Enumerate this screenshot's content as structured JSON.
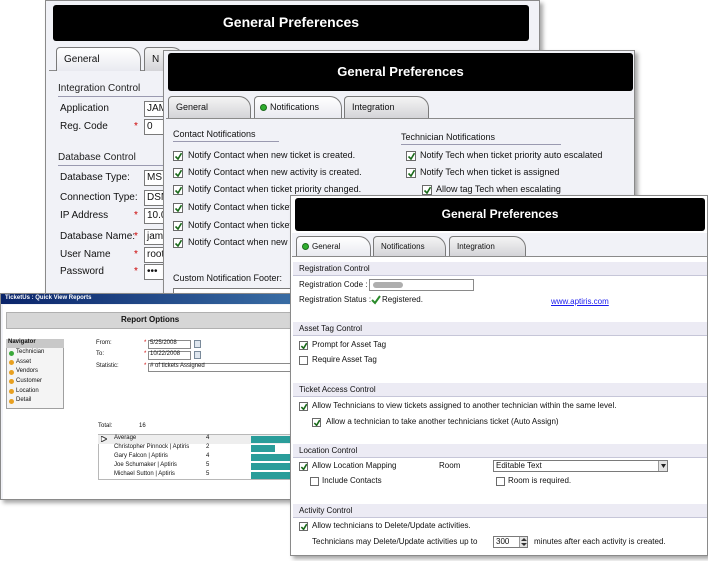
{
  "back_window": {
    "title": "General Preferences",
    "tabs": [
      "General",
      "N"
    ],
    "integration_control": {
      "heading": "Integration Control",
      "fields": [
        {
          "label": "Application",
          "value": "JAM"
        },
        {
          "label": "Reg. Code",
          "mark": "*",
          "value": "0"
        }
      ]
    },
    "database_control": {
      "heading": "Database Control",
      "fields": [
        {
          "label": "Database Type:",
          "value": "MS"
        },
        {
          "label": "Connection Type:",
          "value": "DSN"
        },
        {
          "label": "IP Address",
          "mark": "*",
          "value": "10.0"
        },
        {
          "label": "Database Name:",
          "mark": "*",
          "value": "jamf"
        },
        {
          "label": "User Name",
          "mark": "*",
          "value": "root"
        },
        {
          "label": "Password",
          "mark": "*",
          "value": "•••"
        }
      ]
    }
  },
  "middle_window": {
    "title": "General Preferences",
    "tabs": [
      "General",
      "Notifications",
      "Integration"
    ],
    "contact_notifications": {
      "heading": "Contact Notifications",
      "items": [
        {
          "label": "Notify Contact when new ticket is created.",
          "checked": true
        },
        {
          "label": "Notify Contact when new activity is created.",
          "checked": true
        },
        {
          "label": "Notify Contact when ticket priority changed.",
          "checked": true
        },
        {
          "label": "Notify Contact when ticket",
          "checked": true
        },
        {
          "label": "Notify Contact when ticket",
          "checked": true
        },
        {
          "label": "Notify Contact when new ticket",
          "checked": true
        }
      ]
    },
    "technician_notifications": {
      "heading": "Technician Notifications",
      "items": [
        {
          "label": "Notify Tech when ticket priority auto escalated",
          "checked": true
        },
        {
          "label": "Notify Tech when  ticket is assigned",
          "checked": true
        },
        {
          "label": "Allow tag Tech when escalating",
          "checked": true
        }
      ]
    },
    "footer_label": "Custom Notification Footer:"
  },
  "report_window": {
    "title": "TicketUs : Quick View Reports",
    "heading": "Report Options",
    "navigator": {
      "heading": "Navigator",
      "items": [
        {
          "label": "Technician",
          "color": "#3aa83a"
        },
        {
          "label": "Asset",
          "color": "#e8a020"
        },
        {
          "label": "Vendors",
          "color": "#e8a020"
        },
        {
          "label": "Customer",
          "color": "#e8a020"
        },
        {
          "label": "Location",
          "color": "#e8a020"
        },
        {
          "label": "Detail",
          "color": "#e8a020"
        }
      ]
    },
    "from": {
      "label": "From:",
      "mark": "*",
      "value": "5/25/2008"
    },
    "to": {
      "label": "To:",
      "mark": "*",
      "value": "10/22/2008"
    },
    "statistic": {
      "label": "Statistic:",
      "mark": "*",
      "value": "# of tickets Assigned"
    },
    "total": {
      "label": "Total:",
      "value": 16
    },
    "bar_color": "#2a9d9a",
    "rows": [
      {
        "name": "Average",
        "count": 4
      },
      {
        "name": "Christopher Pinnock | Aptiris",
        "count": 2
      },
      {
        "name": "Gary Falcon | Aptiris",
        "count": 4
      },
      {
        "name": "Joe Schumaker | Aptiris",
        "count": 5
      },
      {
        "name": "Michael Sutton | Aptiris",
        "count": 5
      }
    ]
  },
  "front_window": {
    "title": "General Preferences",
    "tabs": [
      "General",
      "Notifications",
      "Integration"
    ],
    "registration_control": {
      "heading": "Registration Control",
      "code_label": "Registration Code :",
      "status_label": "Registration Status :",
      "status": "Registered.",
      "link": "www.aptiris.com"
    },
    "asset_tag_control": {
      "heading": "Asset Tag Control",
      "options": [
        {
          "label": "Prompt for Asset Tag",
          "checked": true
        },
        {
          "label": "Require  Asset Tag",
          "checked": false
        }
      ]
    },
    "ticket_access_control": {
      "heading": "Ticket Access Control",
      "options": [
        {
          "label": "Allow Technicians to view tickets assigned to another technician within the same level.",
          "checked": true
        },
        {
          "label": "Allow a technician to take another technicians ticket (Auto Assign)",
          "checked": true
        }
      ]
    },
    "location_control": {
      "heading": "Location Control",
      "mapping": {
        "label": "Allow Location Mapping",
        "checked": true
      },
      "room_label": "Room",
      "room_type": "Editable Text",
      "include_contacts": {
        "label": "Include Contacts",
        "checked": false
      },
      "room_required": {
        "label": "Room is required.",
        "checked": false
      }
    },
    "activity_control": {
      "heading": "Activity Control",
      "allow": {
        "label": "Allow technicians to Delete/Update activities.",
        "checked": true
      },
      "limit_label": "Technicians may Delete/Update activities up to",
      "limit_minutes": 300,
      "limit_suffix": "minutes after each activity is created."
    }
  }
}
